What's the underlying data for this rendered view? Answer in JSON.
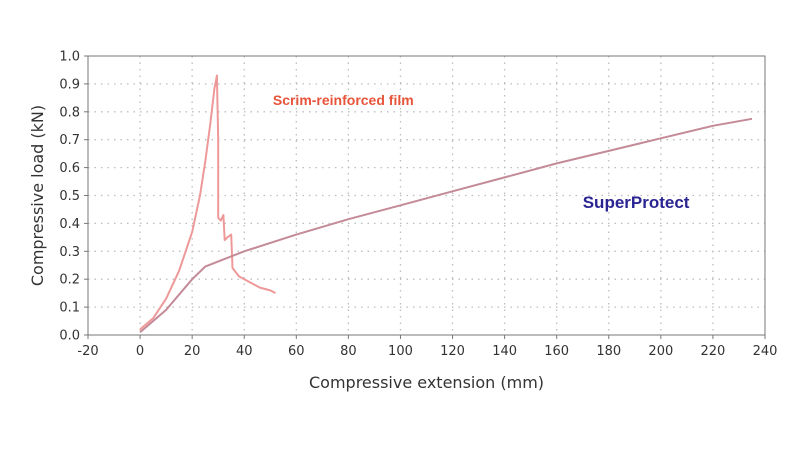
{
  "chart_data": {
    "type": "line",
    "xlabel": "Compressive extension (mm)",
    "ylabel": "Compressive load (kN)",
    "xlim": [
      -20,
      240
    ],
    "ylim": [
      0,
      1.0
    ],
    "x_ticks": [
      -20,
      0,
      20,
      40,
      60,
      80,
      100,
      120,
      140,
      160,
      180,
      200,
      220,
      240
    ],
    "y_ticks": [
      0.0,
      0.1,
      0.2,
      0.3,
      0.4,
      0.5,
      0.6,
      0.7,
      0.8,
      0.9,
      1.0
    ],
    "y_tick_labels": [
      "0.0",
      "0.1",
      "0.2",
      "0.3",
      "0.4",
      "0.5",
      "0.6",
      "0.7",
      "0.8",
      "0.9",
      "1.0"
    ],
    "grid": true,
    "series": [
      {
        "name": "Scrim-reinforced film",
        "color": "#ee9999",
        "label_color": "#e8543a",
        "points": [
          [
            0,
            0.02
          ],
          [
            5,
            0.06
          ],
          [
            10,
            0.13
          ],
          [
            15,
            0.23
          ],
          [
            20,
            0.37
          ],
          [
            23,
            0.5
          ],
          [
            25,
            0.62
          ],
          [
            27,
            0.76
          ],
          [
            28.5,
            0.88
          ],
          [
            29.5,
            0.93
          ],
          [
            30,
            0.7
          ],
          [
            30,
            0.42
          ],
          [
            31,
            0.41
          ],
          [
            32,
            0.43
          ],
          [
            32.5,
            0.34
          ],
          [
            33.5,
            0.35
          ],
          [
            35,
            0.36
          ],
          [
            35.5,
            0.24
          ],
          [
            38,
            0.21
          ],
          [
            42,
            0.19
          ],
          [
            46,
            0.17
          ],
          [
            50,
            0.16
          ],
          [
            52,
            0.15
          ]
        ]
      },
      {
        "name": "SuperProtect",
        "color": "#c48a98",
        "label_color": "#2b2593",
        "points": [
          [
            0,
            0.01
          ],
          [
            10,
            0.09
          ],
          [
            20,
            0.2
          ],
          [
            25,
            0.245
          ],
          [
            40,
            0.3
          ],
          [
            60,
            0.36
          ],
          [
            80,
            0.415
          ],
          [
            100,
            0.465
          ],
          [
            120,
            0.515
          ],
          [
            140,
            0.565
          ],
          [
            160,
            0.615
          ],
          [
            180,
            0.66
          ],
          [
            200,
            0.705
          ],
          [
            220,
            0.75
          ],
          [
            235,
            0.775
          ]
        ]
      }
    ],
    "annotations": [
      {
        "text": "Scrim-reinforced film",
        "series": 0,
        "x": 51,
        "y": 0.825,
        "color": "#e8543a"
      },
      {
        "text": "SuperProtect",
        "series": 1,
        "x": 170,
        "y": 0.455,
        "color": "#2b2593"
      }
    ]
  }
}
